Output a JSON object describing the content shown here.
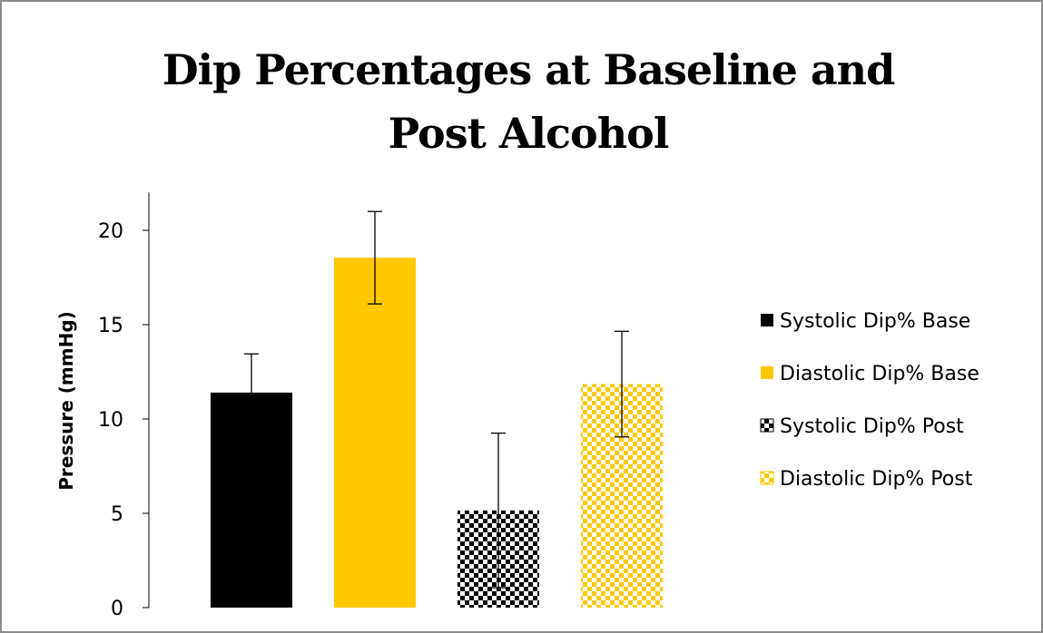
{
  "chart_data": {
    "type": "bar",
    "title_lines": [
      "Dip Percentages at Baseline and",
      "Post Alcohol"
    ],
    "ylabel": "Pressure (mmHg)",
    "ylim": [
      0,
      22
    ],
    "yticks": [
      0,
      5,
      10,
      15,
      20
    ],
    "grid": false,
    "legend_position": "right",
    "series": [
      {
        "name": "Systolic Dip% Base",
        "value": 11.4,
        "error": 2.05,
        "color": "#000000",
        "pattern": "solid"
      },
      {
        "name": "Diastolic Dip% Base",
        "value": 18.55,
        "error": 2.45,
        "color": "#FFC800",
        "pattern": "solid"
      },
      {
        "name": "Systolic Dip% Post",
        "value": 5.15,
        "error": 4.1,
        "color": "#000000",
        "pattern": "checker"
      },
      {
        "name": "Diastolic Dip% Post",
        "value": 11.85,
        "error": 2.8,
        "color": "#FFC800",
        "pattern": "checker"
      }
    ]
  }
}
